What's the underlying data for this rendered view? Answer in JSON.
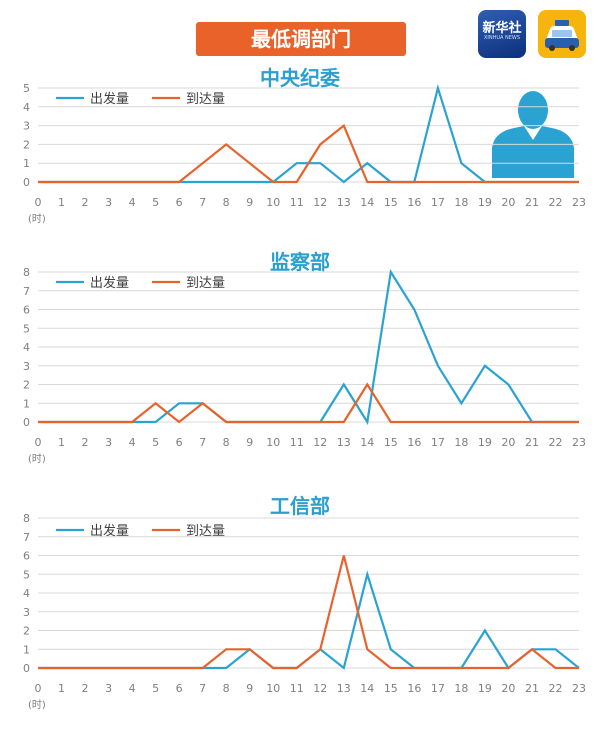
{
  "banner": "最低调部门",
  "logos": {
    "xinhua_text": "新华社",
    "xinhua_sub": "XINHUA NEWS",
    "taxi_icon": "taxi-icon",
    "person_icon": "person-silhouette-icon"
  },
  "colors": {
    "departure": "#2aa3d3",
    "arrival": "#e8632b",
    "title": "#2aa0cf",
    "banner": "#e8622a"
  },
  "chart_data": [
    {
      "type": "line",
      "title": "中央纪委",
      "x": [
        0,
        1,
        2,
        3,
        4,
        5,
        6,
        7,
        8,
        9,
        10,
        11,
        12,
        13,
        14,
        15,
        16,
        17,
        18,
        19,
        20,
        21,
        22,
        23
      ],
      "xunit": "(时)",
      "ylim": [
        0,
        5
      ],
      "yticks": [
        0,
        1,
        2,
        3,
        4,
        5
      ],
      "legend_position": "top-left",
      "series": [
        {
          "name": "出发量",
          "values": [
            0,
            0,
            0,
            0,
            0,
            0,
            0,
            0,
            0,
            0,
            0,
            1,
            1,
            0,
            1,
            0,
            0,
            5,
            1,
            0,
            0,
            0,
            0,
            0
          ]
        },
        {
          "name": "到达量",
          "values": [
            0,
            0,
            0,
            0,
            0,
            0,
            0,
            1,
            2,
            1,
            0,
            0,
            2,
            3,
            0,
            0,
            0,
            0,
            0,
            0,
            0,
            0,
            0,
            0
          ]
        }
      ]
    },
    {
      "type": "line",
      "title": "监察部",
      "x": [
        0,
        1,
        2,
        3,
        4,
        5,
        6,
        7,
        8,
        9,
        10,
        11,
        12,
        13,
        14,
        15,
        16,
        17,
        18,
        19,
        20,
        21,
        22,
        23
      ],
      "xunit": "(时)",
      "ylim": [
        0,
        8
      ],
      "yticks": [
        0,
        1,
        2,
        3,
        4,
        5,
        6,
        7,
        8
      ],
      "legend_position": "top-left",
      "series": [
        {
          "name": "出发量",
          "values": [
            0,
            0,
            0,
            0,
            0,
            0,
            1,
            1,
            0,
            0,
            0,
            0,
            0,
            2,
            0,
            8,
            6,
            3,
            1,
            3,
            2,
            0,
            0,
            0
          ]
        },
        {
          "name": "到达量",
          "values": [
            0,
            0,
            0,
            0,
            0,
            1,
            0,
            1,
            0,
            0,
            0,
            0,
            0,
            0,
            2,
            0,
            0,
            0,
            0,
            0,
            0,
            0,
            0,
            0
          ]
        }
      ]
    },
    {
      "type": "line",
      "title": "工信部",
      "x": [
        0,
        1,
        2,
        3,
        4,
        5,
        6,
        7,
        8,
        9,
        10,
        11,
        12,
        13,
        14,
        15,
        16,
        17,
        18,
        19,
        20,
        21,
        22,
        23
      ],
      "xunit": "(时)",
      "ylim": [
        0,
        8
      ],
      "yticks": [
        0,
        1,
        2,
        3,
        4,
        5,
        6,
        7,
        8
      ],
      "legend_position": "top-left",
      "series": [
        {
          "name": "出发量",
          "values": [
            0,
            0,
            0,
            0,
            0,
            0,
            0,
            0,
            0,
            1,
            0,
            0,
            1,
            0,
            5,
            1,
            0,
            0,
            0,
            2,
            0,
            1,
            1,
            0
          ]
        },
        {
          "name": "到达量",
          "values": [
            0,
            0,
            0,
            0,
            0,
            0,
            0,
            0,
            1,
            1,
            0,
            0,
            1,
            6,
            1,
            0,
            0,
            0,
            0,
            0,
            0,
            1,
            0,
            0
          ]
        }
      ]
    }
  ]
}
